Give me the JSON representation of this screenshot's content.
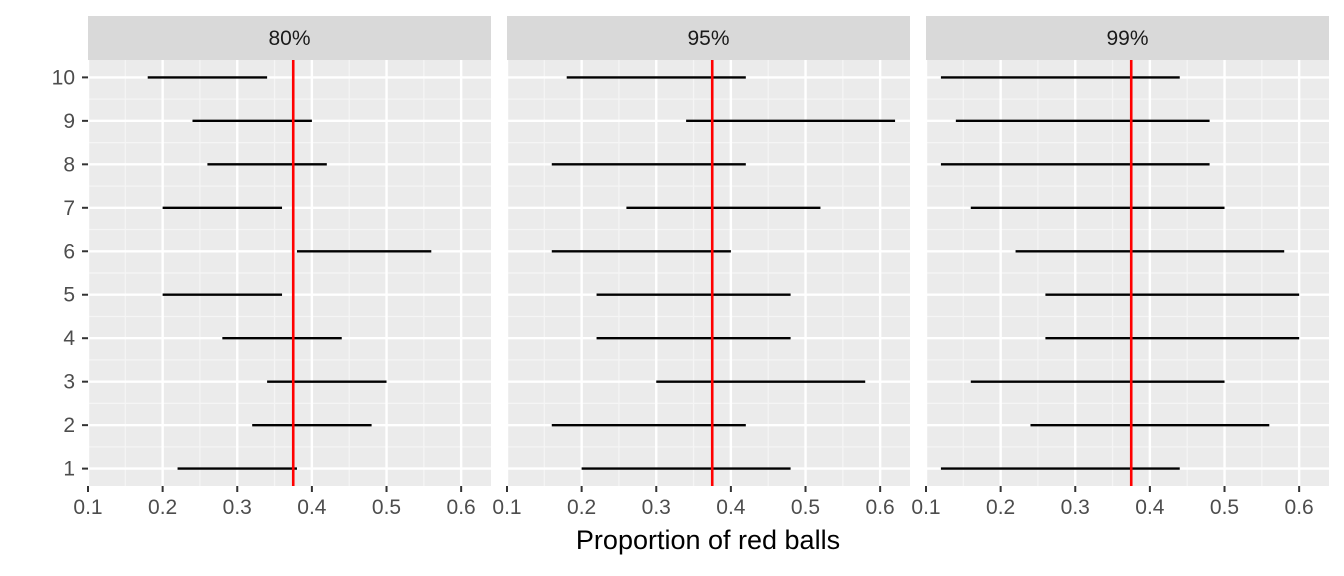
{
  "chart_data": {
    "type": "faceted-interval",
    "xlabel": "Proportion of red balls",
    "ylabel": "",
    "xlim": [
      0.1,
      0.64
    ],
    "ylim": [
      0.6,
      10.4
    ],
    "x_ticks": [
      0.1,
      0.2,
      0.3,
      0.4,
      0.5,
      0.6
    ],
    "x_tick_labels": [
      "0.1",
      "0.2",
      "0.3",
      "0.4",
      "0.5",
      "0.6"
    ],
    "y_ticks": [
      1,
      2,
      3,
      4,
      5,
      6,
      7,
      8,
      9,
      10
    ],
    "y_tick_labels": [
      "1",
      "2",
      "3",
      "4",
      "5",
      "6",
      "7",
      "8",
      "9",
      "10"
    ],
    "reference_line": {
      "x": 0.375,
      "color": "#ff0000"
    },
    "interval_color": "#000000",
    "panel_background": "#ebebeb",
    "strip_background": "#d9d9d9",
    "grid": true,
    "facets": [
      {
        "label": "80%",
        "intervals": [
          {
            "sample": 1,
            "lower": 0.22,
            "upper": 0.38
          },
          {
            "sample": 2,
            "lower": 0.32,
            "upper": 0.48
          },
          {
            "sample": 3,
            "lower": 0.34,
            "upper": 0.5
          },
          {
            "sample": 4,
            "lower": 0.28,
            "upper": 0.44
          },
          {
            "sample": 5,
            "lower": 0.2,
            "upper": 0.36
          },
          {
            "sample": 6,
            "lower": 0.38,
            "upper": 0.56
          },
          {
            "sample": 7,
            "lower": 0.2,
            "upper": 0.36
          },
          {
            "sample": 8,
            "lower": 0.26,
            "upper": 0.42
          },
          {
            "sample": 9,
            "lower": 0.24,
            "upper": 0.4
          },
          {
            "sample": 10,
            "lower": 0.18,
            "upper": 0.34
          }
        ]
      },
      {
        "label": "95%",
        "intervals": [
          {
            "sample": 1,
            "lower": 0.2,
            "upper": 0.48
          },
          {
            "sample": 2,
            "lower": 0.16,
            "upper": 0.42
          },
          {
            "sample": 3,
            "lower": 0.3,
            "upper": 0.58
          },
          {
            "sample": 4,
            "lower": 0.22,
            "upper": 0.48
          },
          {
            "sample": 5,
            "lower": 0.22,
            "upper": 0.48
          },
          {
            "sample": 6,
            "lower": 0.16,
            "upper": 0.4
          },
          {
            "sample": 7,
            "lower": 0.26,
            "upper": 0.52
          },
          {
            "sample": 8,
            "lower": 0.16,
            "upper": 0.42
          },
          {
            "sample": 9,
            "lower": 0.34,
            "upper": 0.62
          },
          {
            "sample": 10,
            "lower": 0.18,
            "upper": 0.42
          }
        ]
      },
      {
        "label": "99%",
        "intervals": [
          {
            "sample": 1,
            "lower": 0.12,
            "upper": 0.44
          },
          {
            "sample": 2,
            "lower": 0.24,
            "upper": 0.56
          },
          {
            "sample": 3,
            "lower": 0.16,
            "upper": 0.5
          },
          {
            "sample": 4,
            "lower": 0.26,
            "upper": 0.6
          },
          {
            "sample": 5,
            "lower": 0.26,
            "upper": 0.6
          },
          {
            "sample": 6,
            "lower": 0.22,
            "upper": 0.58
          },
          {
            "sample": 7,
            "lower": 0.16,
            "upper": 0.5
          },
          {
            "sample": 8,
            "lower": 0.12,
            "upper": 0.48
          },
          {
            "sample": 9,
            "lower": 0.14,
            "upper": 0.48
          },
          {
            "sample": 10,
            "lower": 0.12,
            "upper": 0.44
          }
        ]
      }
    ]
  }
}
